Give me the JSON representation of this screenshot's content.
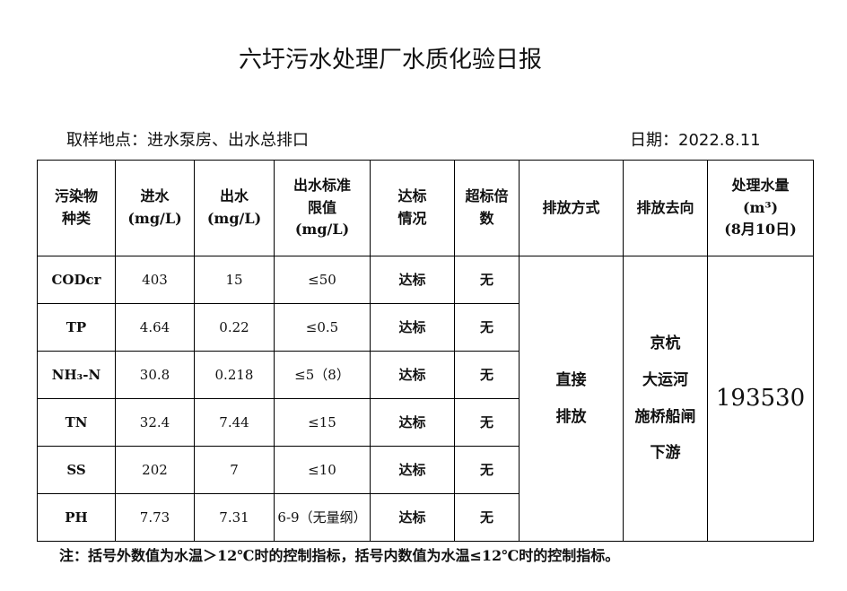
{
  "title": "六圩污水处理厂水质化验日报",
  "sampling_location": "取样地点：进水泵房、出水总排口",
  "date": "日期：2022.8.11",
  "table": {
    "headers": [
      "污染物\n种类",
      "进水\n(mg/L)",
      "出水\n(mg/L)",
      "出水标准\n限值\n(mg/L)",
      "达标\n情况",
      "超标倍\n数",
      "排放方式",
      "排放去向",
      "处理水量\n(m³)\n(8月10日)"
    ],
    "rows": [
      {
        "pollutant": "CODcr",
        "influent": "403",
        "effluent": "15",
        "limit": "≤50",
        "status": "达标",
        "exceed": "无"
      },
      {
        "pollutant": "TP",
        "influent": "4.64",
        "effluent": "0.22",
        "limit": "≤0.5",
        "status": "达标",
        "exceed": "无"
      },
      {
        "pollutant": "NH₃-N",
        "influent": "30.8",
        "effluent": "0.218",
        "limit": "≤5（8）",
        "status": "达标",
        "exceed": "无"
      },
      {
        "pollutant": "TN",
        "influent": "32.4",
        "effluent": "7.44",
        "limit": "≤15",
        "status": "达标",
        "exceed": "无"
      },
      {
        "pollutant": "SS",
        "influent": "202",
        "effluent": "7",
        "limit": "≤10",
        "status": "达标",
        "exceed": "无"
      },
      {
        "pollutant": "PH",
        "influent": "7.73",
        "effluent": "7.31",
        "limit": "6-9（无量纲）",
        "status": "达标",
        "exceed": "无"
      }
    ],
    "discharge_method": "直接\n排放",
    "discharge_destination": "京杭\n大运河\n施桥船闸\n下游",
    "treated_volume": "193530"
  },
  "note": "注：括号外数值为水温＞12℃时的控制指标，括号内数值为水温≤12℃时的控制指标。"
}
